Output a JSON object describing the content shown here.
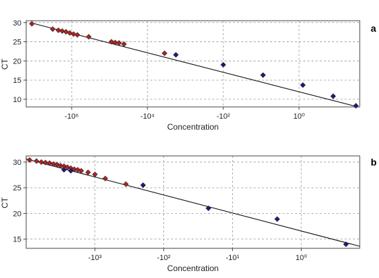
{
  "chart_data": [
    {
      "panel_label": "a",
      "type": "scatter",
      "xlabel": "Concentration",
      "ylabel": "CT",
      "x_scale": "log",
      "x_tick_labels": [
        "-10⁶",
        "-10⁴",
        "-10²",
        "10⁰"
      ],
      "x_tick_log10": [
        -6,
        -4,
        -2,
        0
      ],
      "xlim_log10": [
        -7.2,
        1.6
      ],
      "y_ticks": [
        10,
        15,
        20,
        25,
        30
      ],
      "ylim": [
        8,
        30.5
      ],
      "grid": true,
      "series": [
        {
          "color": "#b22222",
          "marker": "diamond",
          "points": [
            {
              "x_log10": -7.05,
              "y": 29.7
            },
            {
              "x_log10": -6.5,
              "y": 28.3
            },
            {
              "x_log10": -6.35,
              "y": 28.0
            },
            {
              "x_log10": -6.25,
              "y": 27.8
            },
            {
              "x_log10": -6.15,
              "y": 27.6
            },
            {
              "x_log10": -6.05,
              "y": 27.3
            },
            {
              "x_log10": -5.95,
              "y": 27.0
            },
            {
              "x_log10": -5.85,
              "y": 26.8
            },
            {
              "x_log10": -5.55,
              "y": 26.3
            },
            {
              "x_log10": -4.95,
              "y": 25.0
            },
            {
              "x_log10": -4.85,
              "y": 24.8
            },
            {
              "x_log10": -4.75,
              "y": 24.7
            },
            {
              "x_log10": -4.62,
              "y": 24.4
            },
            {
              "x_log10": -3.55,
              "y": 22.0
            }
          ]
        },
        {
          "color": "#1a1a8c",
          "marker": "diamond",
          "points": [
            {
              "x_log10": -3.25,
              "y": 21.6
            },
            {
              "x_log10": -2.0,
              "y": 19.0
            },
            {
              "x_log10": -0.95,
              "y": 16.3
            },
            {
              "x_log10": 0.1,
              "y": 13.7
            },
            {
              "x_log10": 0.9,
              "y": 10.8
            },
            {
              "x_log10": 1.5,
              "y": 8.3
            }
          ]
        }
      ],
      "fit_line": {
        "from": {
          "x_log10": -7.1,
          "y": 30.0
        },
        "to": {
          "x_log10": 1.55,
          "y": 8.0
        }
      }
    },
    {
      "panel_label": "b",
      "type": "scatter",
      "xlabel": "Concentration",
      "ylabel": "CT",
      "x_scale": "log",
      "x_tick_labels": [
        "-10³",
        "-10²",
        "-10¹",
        "10⁰"
      ],
      "x_tick_log10": [
        -3,
        -2,
        -1,
        0
      ],
      "xlim_log10": [
        -4.0,
        0.85
      ],
      "y_ticks": [
        15,
        20,
        25,
        30
      ],
      "ylim": [
        13.2,
        31.2
      ],
      "grid": true,
      "series": [
        {
          "color": "#b22222",
          "marker": "diamond",
          "points": [
            {
              "x_log10": -3.95,
              "y": 30.4
            },
            {
              "x_log10": -3.85,
              "y": 30.2
            },
            {
              "x_log10": -3.78,
              "y": 30.0
            },
            {
              "x_log10": -3.72,
              "y": 29.9
            },
            {
              "x_log10": -3.66,
              "y": 29.8
            },
            {
              "x_log10": -3.6,
              "y": 29.6
            },
            {
              "x_log10": -3.55,
              "y": 29.5
            },
            {
              "x_log10": -3.5,
              "y": 29.3
            },
            {
              "x_log10": -3.45,
              "y": 29.2
            },
            {
              "x_log10": -3.4,
              "y": 29.0
            },
            {
              "x_log10": -3.35,
              "y": 28.8
            },
            {
              "x_log10": -3.3,
              "y": 28.6
            },
            {
              "x_log10": -3.25,
              "y": 28.5
            },
            {
              "x_log10": -3.2,
              "y": 28.3
            },
            {
              "x_log10": -3.1,
              "y": 28.0
            },
            {
              "x_log10": -3.0,
              "y": 27.6
            },
            {
              "x_log10": -2.85,
              "y": 26.8
            },
            {
              "x_log10": -2.55,
              "y": 25.7
            }
          ]
        },
        {
          "color": "#1a1a8c",
          "marker": "diamond",
          "points": [
            {
              "x_log10": -3.45,
              "y": 28.5
            },
            {
              "x_log10": -3.35,
              "y": 28.3
            },
            {
              "x_log10": -2.3,
              "y": 25.5
            },
            {
              "x_log10": -1.35,
              "y": 21.0
            },
            {
              "x_log10": -0.35,
              "y": 18.9
            },
            {
              "x_log10": 0.65,
              "y": 14.0
            }
          ]
        }
      ],
      "fit_line": {
        "from": {
          "x_log10": -4.0,
          "y": 30.6
        },
        "to": {
          "x_log10": 0.85,
          "y": 13.6
        }
      }
    }
  ]
}
